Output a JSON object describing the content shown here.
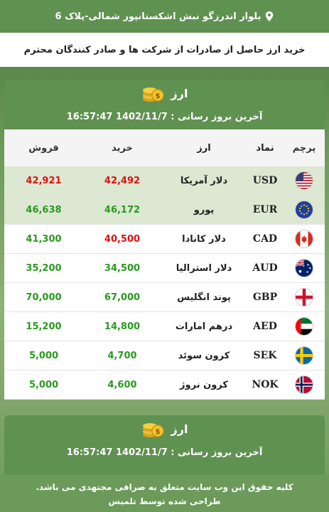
{
  "topbar": {
    "address": "بلوار اندرزگو نبش اشکستانپور شمالی-پلاک 6",
    "icon": "location-pin-icon"
  },
  "notice": {
    "text": "خرید ارز حاصل از صادرات از شرکت ها و صادر کنندگان محترم"
  },
  "panels": [
    {
      "title": "ارز",
      "updated": "آخرین بروز رسانی : 1402/11/7 16:57:47"
    },
    {
      "title": "ارز",
      "updated": "آخرین بروز رسانی : 1402/11/7 16:57:47"
    }
  ],
  "table": {
    "headers": {
      "flag": "پرچم",
      "code": "نماد",
      "name": "ارز",
      "buy": "خرید",
      "sell": "فروش"
    },
    "rows": [
      {
        "code": "USD",
        "name": "دلار آمریکا",
        "buy": "42,492",
        "sell": "42,921",
        "flag": "us-flag-icon"
      },
      {
        "code": "EUR",
        "name": "یورو",
        "buy": "46,172",
        "sell": "46,638",
        "flag": "eu-flag-icon"
      },
      {
        "code": "CAD",
        "name": "دلار کانادا",
        "buy": "40,500",
        "sell": "41,300",
        "flag": "ca-flag-icon"
      },
      {
        "code": "AUD",
        "name": "دلار استرالیا",
        "buy": "34,500",
        "sell": "35,200",
        "flag": "au-flag-icon"
      },
      {
        "code": "GBP",
        "name": "پوند انگلیس",
        "buy": "67,000",
        "sell": "70,000",
        "flag": "gb-flag-icon"
      },
      {
        "code": "AED",
        "name": "درهم امارات",
        "buy": "14,800",
        "sell": "15,200",
        "flag": "ae-flag-icon"
      },
      {
        "code": "SEK",
        "name": "کرون سوئد",
        "buy": "4,700",
        "sell": "5,000",
        "flag": "se-flag-icon"
      },
      {
        "code": "NOK",
        "name": "کرون نروژ",
        "buy": "4,600",
        "sell": "5,000",
        "flag": "no-flag-icon"
      }
    ]
  },
  "footer": {
    "line1": "کلیه حقوق این وب سایت متعلق به صرافی مجتهدی می باشد.",
    "line2": "طراحی شده توسط تلمیس"
  },
  "colors": {
    "header_green": "#5f9150",
    "row_highlight": "#dce8d2",
    "up_green": "#2a9a1e",
    "down_red": "#e01010"
  }
}
